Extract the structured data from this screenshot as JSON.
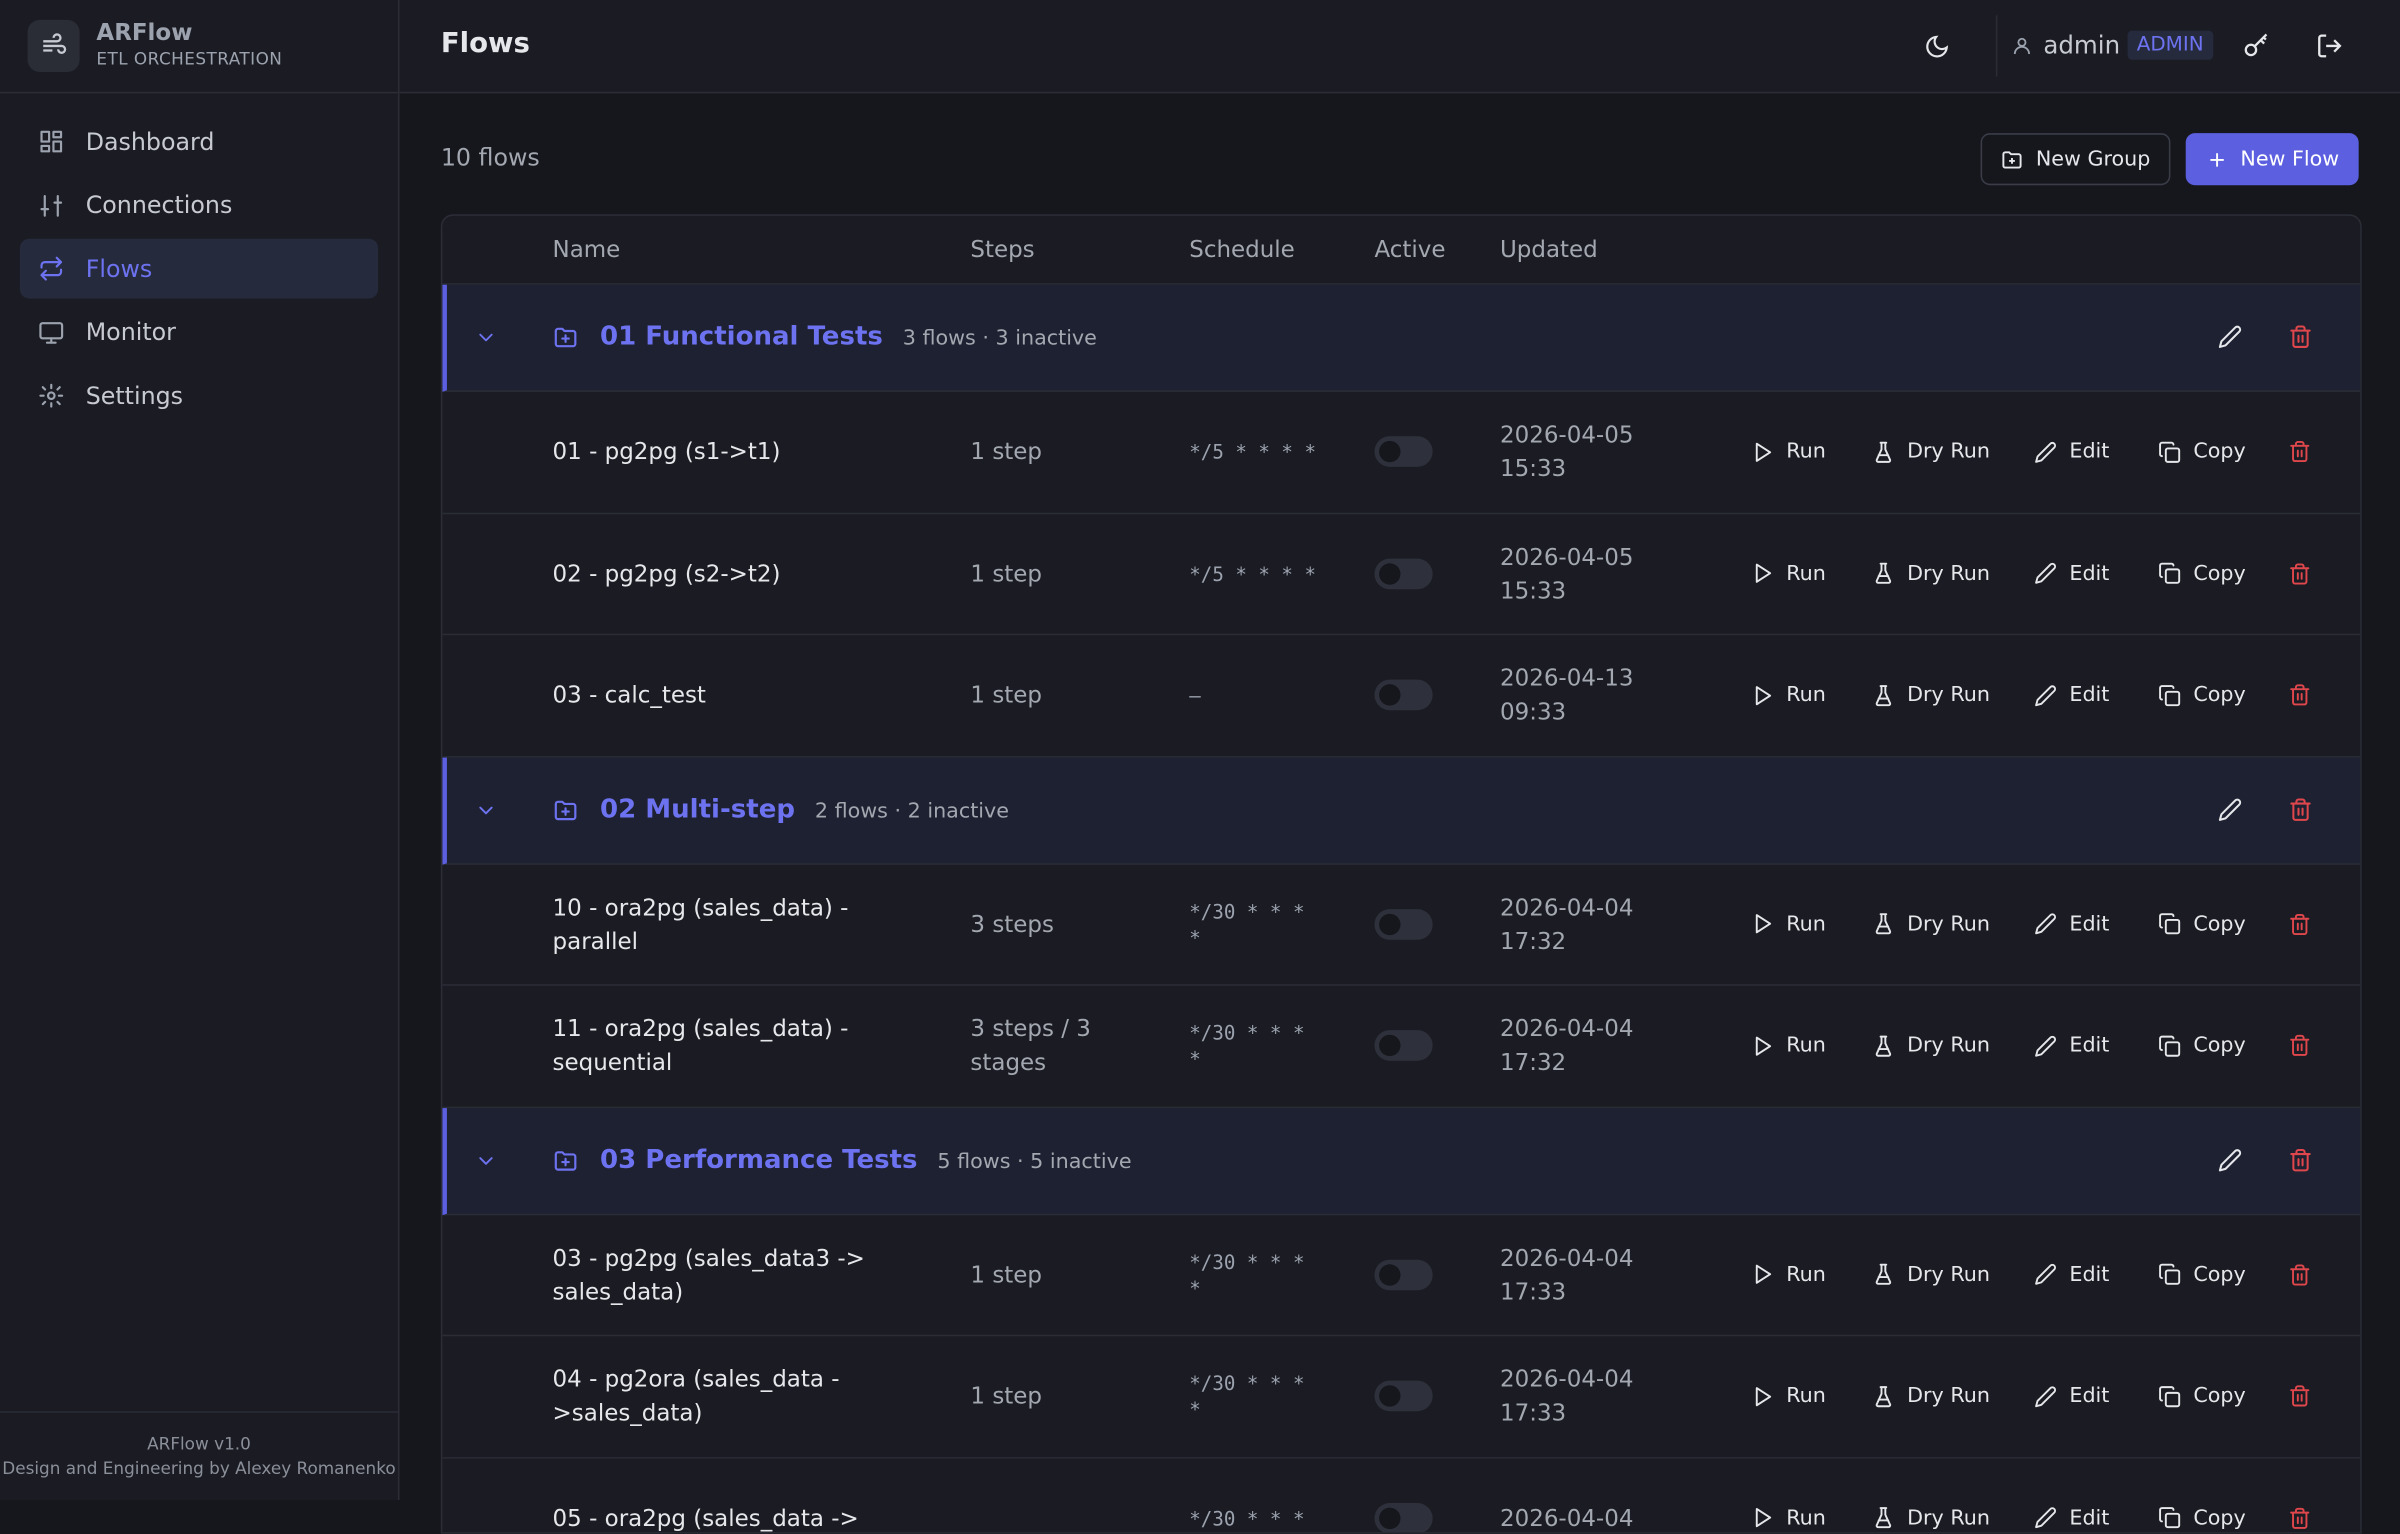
{
  "sidebar": {
    "brand": {
      "name": "ARFlow",
      "subtitle": "ETL ORCHESTRATION"
    },
    "nav": [
      {
        "label": "Dashboard",
        "active": false
      },
      {
        "label": "Connections",
        "active": false
      },
      {
        "label": "Flows",
        "active": true
      },
      {
        "label": "Monitor",
        "active": false
      },
      {
        "label": "Settings",
        "active": false
      }
    ],
    "footer": {
      "version": "ARFlow v1.0",
      "credit": "Design and Engineering by Alexey Romanenko"
    }
  },
  "header": {
    "title": "Flows",
    "user": "admin",
    "role": "ADMIN"
  },
  "toolbar": {
    "count": "10 flows",
    "new_group": "New Group",
    "new_flow": "New Flow"
  },
  "table": {
    "columns": [
      "Name",
      "Steps",
      "Schedule",
      "Active",
      "Updated"
    ]
  },
  "actions": {
    "run": "Run",
    "dry_run": "Dry Run",
    "edit": "Edit",
    "copy": "Copy"
  },
  "groups": [
    {
      "name": "01 Functional Tests",
      "meta": "3 flows · 3 inactive",
      "flows": [
        {
          "name": "01 - pg2pg (s1->t1)",
          "steps": "1 step",
          "schedule": "*/5 * * * *",
          "active": false,
          "updated": "2026-04-05 15:33"
        },
        {
          "name": "02 - pg2pg (s2->t2)",
          "steps": "1 step",
          "schedule": "*/5 * * * *",
          "active": false,
          "updated": "2026-04-05 15:33"
        },
        {
          "name": "03 - calc_test",
          "steps": "1 step",
          "schedule": "–",
          "active": false,
          "updated": "2026-04-13 09:33"
        }
      ]
    },
    {
      "name": "02 Multi-step",
      "meta": "2 flows · 2 inactive",
      "flows": [
        {
          "name": "10 - ora2pg (sales_data) - parallel",
          "steps": "3 steps",
          "schedule": "*/30 * * * *",
          "active": false,
          "updated": "2026-04-04 17:32"
        },
        {
          "name": "11 - ora2pg (sales_data) - sequential",
          "steps": "3 steps / 3 stages",
          "schedule": "*/30 * * * *",
          "active": false,
          "updated": "2026-04-04 17:32"
        }
      ]
    },
    {
      "name": "03 Performance Tests",
      "meta": "5 flows · 5 inactive",
      "flows": [
        {
          "name": "03 - pg2pg (sales_data3 -> sales_data)",
          "steps": "1 step",
          "schedule": "*/30 * * * *",
          "active": false,
          "updated": "2026-04-04 17:33"
        },
        {
          "name": "04 - pg2ora (sales_data ->sales_data)",
          "steps": "1 step",
          "schedule": "*/30 * * * *",
          "active": false,
          "updated": "2026-04-04 17:33"
        },
        {
          "name": "05 - ora2pg (sales_data ->",
          "schedule": "*/30 * * *",
          "active": false,
          "updated": "2026-04-04"
        }
      ]
    }
  ]
}
